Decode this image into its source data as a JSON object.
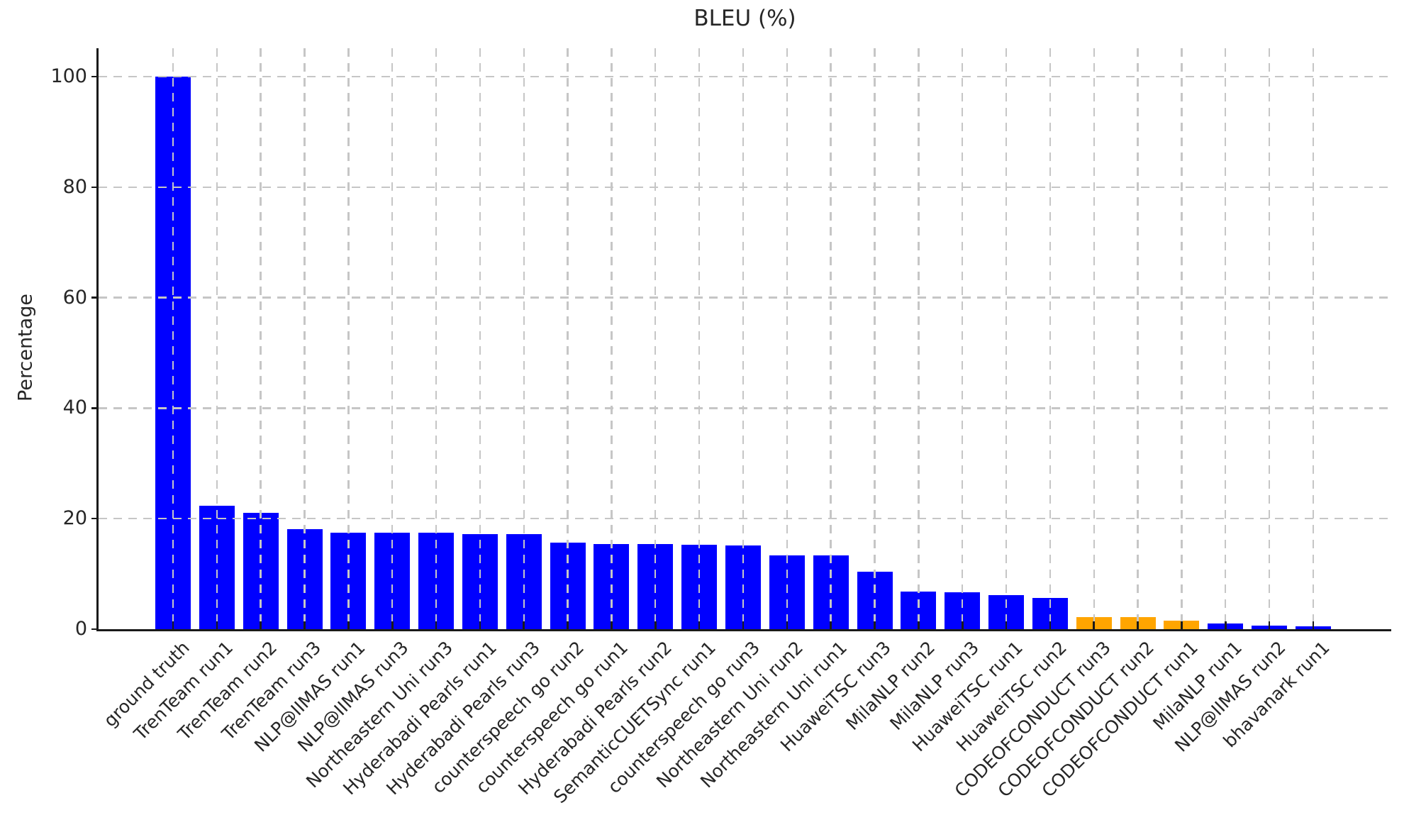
{
  "chart_data": {
    "type": "bar",
    "title": "BLEU (%)",
    "xlabel": "",
    "ylabel": "Percentage",
    "ylim": [
      0,
      104.8
    ],
    "yticks": [
      0,
      20,
      40,
      60,
      80,
      100
    ],
    "grid": {
      "show": true,
      "style": "dashed",
      "axes": "both",
      "color": "#c6c6c6",
      "drawn_over_bars": true
    },
    "legend_position": "none",
    "x_tick_rotation_deg": 45,
    "bar_color_default": "#0000ff",
    "bar_color_highlight": "#ffa500",
    "categories": [
      "ground truth",
      "TrenTeam run1",
      "TrenTeam run2",
      "TrenTeam run3",
      "NLP@IIMAS run1",
      "NLP@IIMAS run3",
      "Northeastern Uni run3",
      "Hyderabadi Pearls run1",
      "Hyderabadi Pearls run3",
      "counterspeech go run2",
      "counterspeech go run1",
      "Hyderabadi Pearls run2",
      "SemanticCUETSync run1",
      "counterspeech go run3",
      "Northeastern Uni run2",
      "Northeastern Uni run1",
      "HuaweiTSC run3",
      "MilaNLP run2",
      "MilaNLP run3",
      "HuaweiTSC run1",
      "HuaweiTSC run2",
      "CODEOFCONDUCT run3",
      "CODEOFCONDUCT run2",
      "CODEOFCONDUCT run1",
      "MilaNLP run1",
      "NLP@IIMAS run2",
      "bhavanark run1"
    ],
    "values": [
      100,
      22.3,
      21.0,
      18.1,
      17.5,
      17.5,
      17.5,
      17.2,
      17.2,
      15.7,
      15.4,
      15.4,
      15.3,
      15.2,
      13.4,
      13.3,
      10.4,
      6.8,
      6.7,
      6.2,
      5.6,
      2.2,
      2.2,
      1.5,
      1.0,
      0.6,
      0.5
    ],
    "colors": [
      "#0000ff",
      "#0000ff",
      "#0000ff",
      "#0000ff",
      "#0000ff",
      "#0000ff",
      "#0000ff",
      "#0000ff",
      "#0000ff",
      "#0000ff",
      "#0000ff",
      "#0000ff",
      "#0000ff",
      "#0000ff",
      "#0000ff",
      "#0000ff",
      "#0000ff",
      "#0000ff",
      "#0000ff",
      "#0000ff",
      "#0000ff",
      "#ffa500",
      "#ffa500",
      "#ffa500",
      "#0000ff",
      "#0000ff",
      "#0000ff"
    ]
  }
}
